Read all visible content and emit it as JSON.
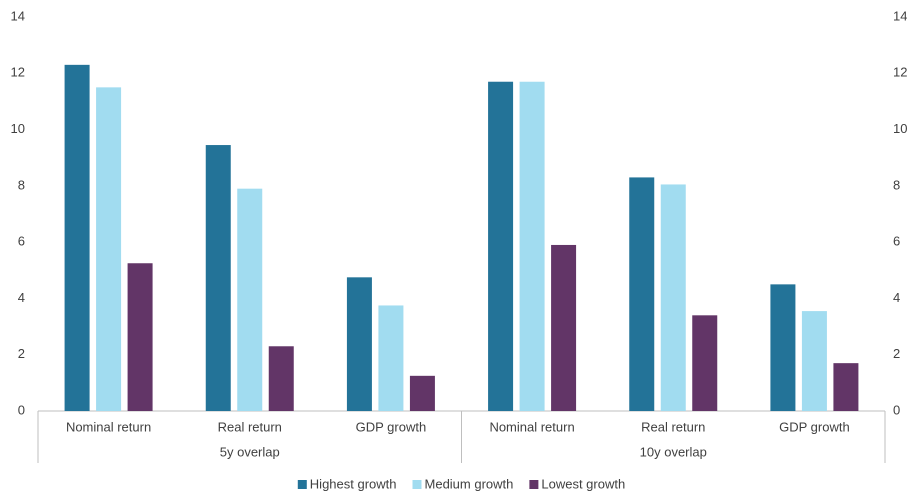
{
  "chart_data": {
    "type": "bar",
    "groups": [
      {
        "name": "5y overlap",
        "categories": [
          "Nominal return",
          "Real return",
          "GDP growth"
        ]
      },
      {
        "name": "10y overlap",
        "categories": [
          "Nominal return",
          "Real return",
          "GDP growth"
        ]
      }
    ],
    "series": [
      {
        "name": "Highest growth",
        "color": "#237398",
        "values": [
          12.3,
          9.45,
          4.75,
          11.7,
          8.3,
          4.5
        ]
      },
      {
        "name": "Medium growth",
        "color": "#a1dcf0",
        "values": [
          11.5,
          7.9,
          3.75,
          11.7,
          8.05,
          3.55
        ]
      },
      {
        "name": "Lowest growth",
        "color": "#623567",
        "values": [
          5.25,
          2.3,
          1.25,
          5.9,
          3.4,
          1.7
        ]
      }
    ],
    "ylim": [
      0,
      14
    ],
    "yticks": [
      0,
      2,
      4,
      6,
      8,
      10,
      12,
      14
    ],
    "y2lim": [
      0,
      14
    ],
    "y2ticks": [
      0,
      2,
      4,
      6,
      8,
      10,
      12,
      14
    ],
    "grid": false,
    "legend": "bottom"
  }
}
